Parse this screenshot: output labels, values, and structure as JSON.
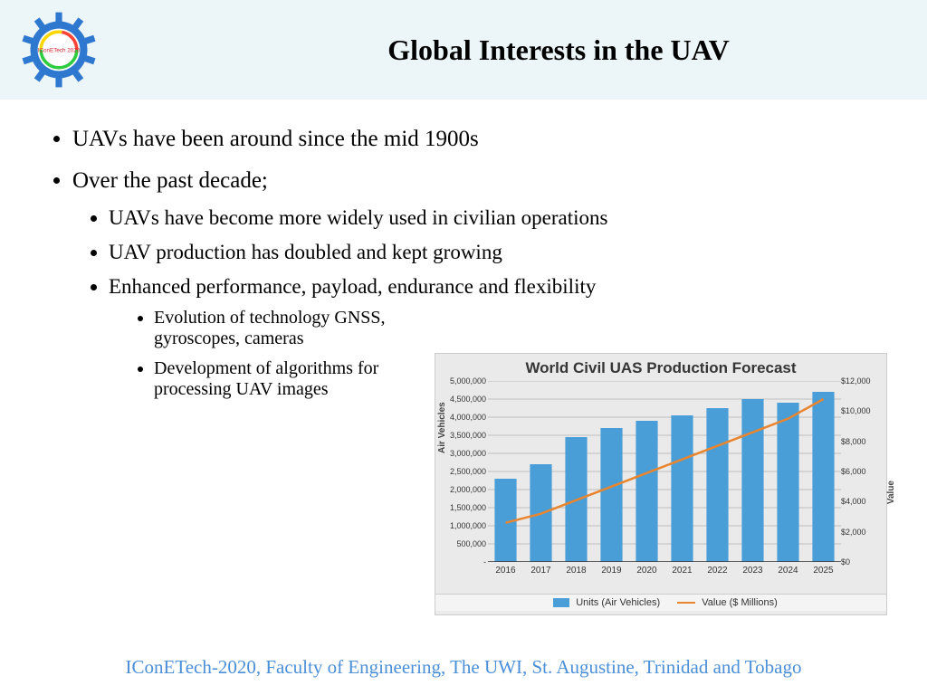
{
  "header": {
    "title": "Global Interests in the UAV",
    "background_color": "#ecf5f7",
    "logo": {
      "gear_color": "#2f78d0",
      "ring_green": "#2ecc40",
      "ring_yellow": "#ffd700",
      "ring_red": "#ff4136",
      "text": "IConETech 2020",
      "text_color": "#d02030"
    }
  },
  "bullets": {
    "level1": [
      "UAVs have been around since the mid 1900s",
      "Over the past decade;"
    ],
    "level2": [
      "UAVs have become more widely used in civilian operations",
      "UAV production has doubled and kept growing",
      "Enhanced performance, payload, endurance and flexibility"
    ],
    "level3": [
      "Evolution of technology GNSS, gyroscopes, cameras",
      "Development of algorithms for processing UAV images"
    ]
  },
  "chart": {
    "type": "bar+line",
    "title": "World Civil UAS Production Forecast",
    "background_color": "#eaeaea",
    "grid_color": "#bdbdbd",
    "title_fontsize": 17,
    "label_fontsize": 10,
    "categories": [
      "2016",
      "2017",
      "2018",
      "2019",
      "2020",
      "2021",
      "2022",
      "2023",
      "2024",
      "2025"
    ],
    "bar_values": [
      2300000,
      2700000,
      3450000,
      3700000,
      3900000,
      4050000,
      4250000,
      4500000,
      4400000,
      4700000
    ],
    "bar_color": "#4a9ed8",
    "bar_width_ratio": 0.62,
    "y_axis_left": {
      "label": "Air Vehicles",
      "min": 0,
      "max": 5000000,
      "ticks": [
        0,
        500000,
        1000000,
        1500000,
        2000000,
        2500000,
        3000000,
        3500000,
        4000000,
        4500000,
        5000000
      ],
      "tick_labels": [
        "-",
        "500,000",
        "1,000,000",
        "1,500,000",
        "2,000,000",
        "2,500,000",
        "3,000,000",
        "3,500,000",
        "4,000,000",
        "4,500,000",
        "5,000,000"
      ]
    },
    "line_values": [
      2600,
      3200,
      4100,
      5000,
      5900,
      6800,
      7700,
      8600,
      9500,
      10800
    ],
    "line_color": "#e9852e",
    "line_width": 2.5,
    "y_axis_right": {
      "label": "Value",
      "min": 0,
      "max": 12000,
      "ticks": [
        0,
        2000,
        4000,
        6000,
        8000,
        10000,
        12000
      ],
      "tick_labels": [
        "$0",
        "$2,000",
        "$4,000",
        "$6,000",
        "$8,000",
        "$10,000",
        "$12,000"
      ]
    },
    "legend": {
      "series1": "Units (Air Vehicles)",
      "series2": "Value ($ Millions)"
    }
  },
  "footer": "IConETech-2020, Faculty of Engineering, The UWI, St. Augustine, Trinidad and Tobago"
}
